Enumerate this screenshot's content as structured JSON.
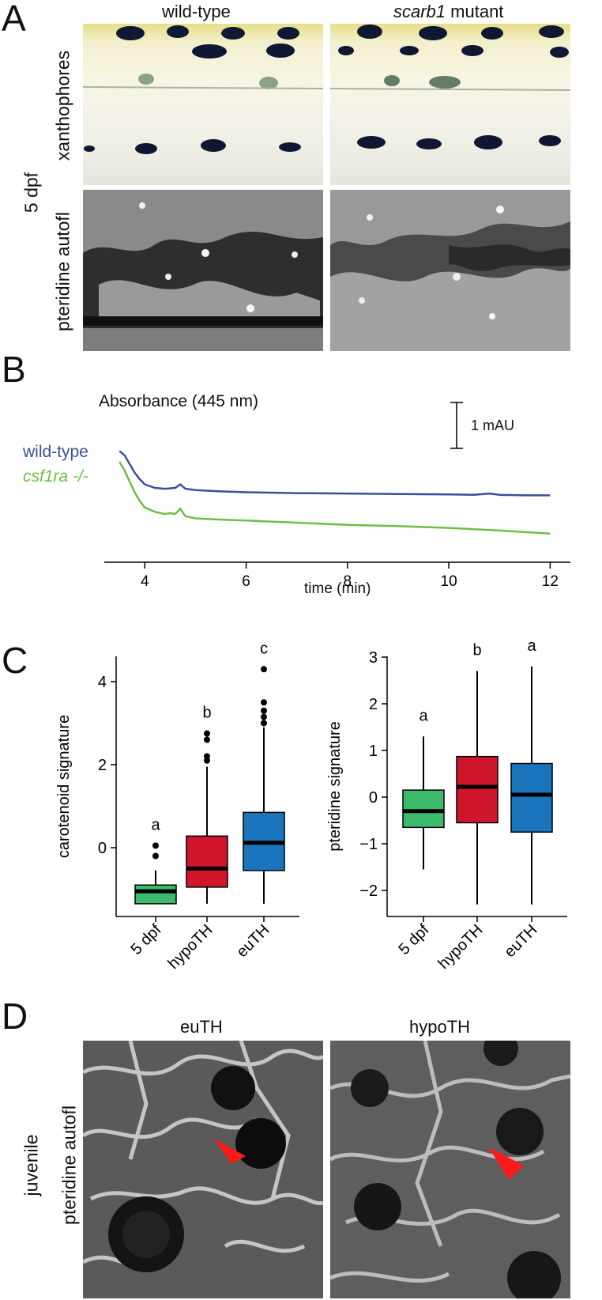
{
  "panels": {
    "a": {
      "letter": "A",
      "col1": "wild-type",
      "col2_italic": "scarb1",
      "col2_rest": " mutant",
      "row1": "xanthophores",
      "row2": "pteridine autofl",
      "side": "5 dpf"
    },
    "b": {
      "letter": "B",
      "title": "Absorbance (445 nm)",
      "scale_label": "1 mAU",
      "legend_wt": "wild-type",
      "legend_mut": "csf1ra -/-",
      "xlabel": "time (min)"
    },
    "c": {
      "letter": "C"
    },
    "d": {
      "letter": "D",
      "col1": "euTH",
      "col2": "hypoTH",
      "row1": "juvenile",
      "row2": "pteridine autofl"
    }
  },
  "colors": {
    "wt_line": "#3a4f9a",
    "mut_line": "#6fbe44",
    "green_box": "#3dbb6c",
    "red_box": "#d0162d",
    "blue_box": "#1a75bc",
    "arrow": "#ff1a1a"
  },
  "chart_data": [
    {
      "type": "line",
      "title": "Absorbance (445 nm)",
      "xlabel": "time (min)",
      "ylabel": "",
      "xlim": [
        3.2,
        12.4
      ],
      "xticks": [
        4,
        6,
        8,
        10,
        12
      ],
      "series": [
        {
          "name": "wild-type",
          "x": [
            3.5,
            3.6,
            3.7,
            3.8,
            3.9,
            4.0,
            4.2,
            4.4,
            4.6,
            4.7,
            4.8,
            5.0,
            5.5,
            6.0,
            7.0,
            8.0,
            9.0,
            10.0,
            10.5,
            10.8,
            11.0,
            11.5,
            12.0
          ],
          "y": [
            1.45,
            1.35,
            1.15,
            0.95,
            0.8,
            0.68,
            0.6,
            0.58,
            0.6,
            0.68,
            0.58,
            0.55,
            0.52,
            0.5,
            0.48,
            0.47,
            0.46,
            0.45,
            0.44,
            0.47,
            0.44,
            0.43,
            0.43
          ]
        },
        {
          "name": "csf1ra -/-",
          "x": [
            3.5,
            3.6,
            3.7,
            3.8,
            3.9,
            4.0,
            4.2,
            4.4,
            4.5,
            4.6,
            4.7,
            4.8,
            5.0,
            5.5,
            6.0,
            7.0,
            8.0,
            9.0,
            10.0,
            11.0,
            12.0
          ],
          "y": [
            1.2,
            1.0,
            0.75,
            0.5,
            0.3,
            0.15,
            0.05,
            0.0,
            0.02,
            0.0,
            0.12,
            -0.05,
            -0.1,
            -0.13,
            -0.15,
            -0.2,
            -0.25,
            -0.28,
            -0.32,
            -0.38,
            -0.45
          ]
        }
      ],
      "scale_bar": "1 mAU"
    },
    {
      "type": "box",
      "ylabel": "carotenoid signature",
      "categories": [
        "5 dpf",
        "hypoTH",
        "euTH"
      ],
      "ylim": [
        -1.7,
        4.6
      ],
      "yticks": [
        0,
        2,
        4
      ],
      "letters": [
        "a",
        "b",
        "c"
      ],
      "boxes": [
        {
          "min": -1.35,
          "q1": -1.35,
          "median": -1.05,
          "q3": -0.9,
          "max": -0.55,
          "outliers": [
            -0.2,
            0.05
          ]
        },
        {
          "min": -1.35,
          "q1": -0.95,
          "median": -0.5,
          "q3": 0.28,
          "max": 1.95,
          "outliers": [
            2.1,
            2.2,
            2.6,
            2.75
          ]
        },
        {
          "min": -1.35,
          "q1": -0.55,
          "median": 0.12,
          "q3": 0.85,
          "max": 2.9,
          "outliers": [
            3.0,
            3.15,
            3.3,
            3.5,
            4.3
          ]
        }
      ]
    },
    {
      "type": "box",
      "ylabel": "pteridine signature",
      "categories": [
        "5 dpf",
        "hypoTH",
        "euTH"
      ],
      "ylim": [
        -2.5,
        3.1
      ],
      "yticks": [
        -2,
        -1,
        0,
        1,
        2,
        3
      ],
      "letters": [
        "a",
        "b",
        "a"
      ],
      "boxes": [
        {
          "min": -1.55,
          "q1": -0.65,
          "median": -0.3,
          "q3": 0.15,
          "max": 1.3,
          "outliers": []
        },
        {
          "min": -2.3,
          "q1": -0.55,
          "median": 0.22,
          "q3": 0.87,
          "max": 2.7,
          "outliers": []
        },
        {
          "min": -2.3,
          "q1": -0.75,
          "median": 0.05,
          "q3": 0.72,
          "max": 2.8,
          "outliers": []
        }
      ]
    }
  ]
}
